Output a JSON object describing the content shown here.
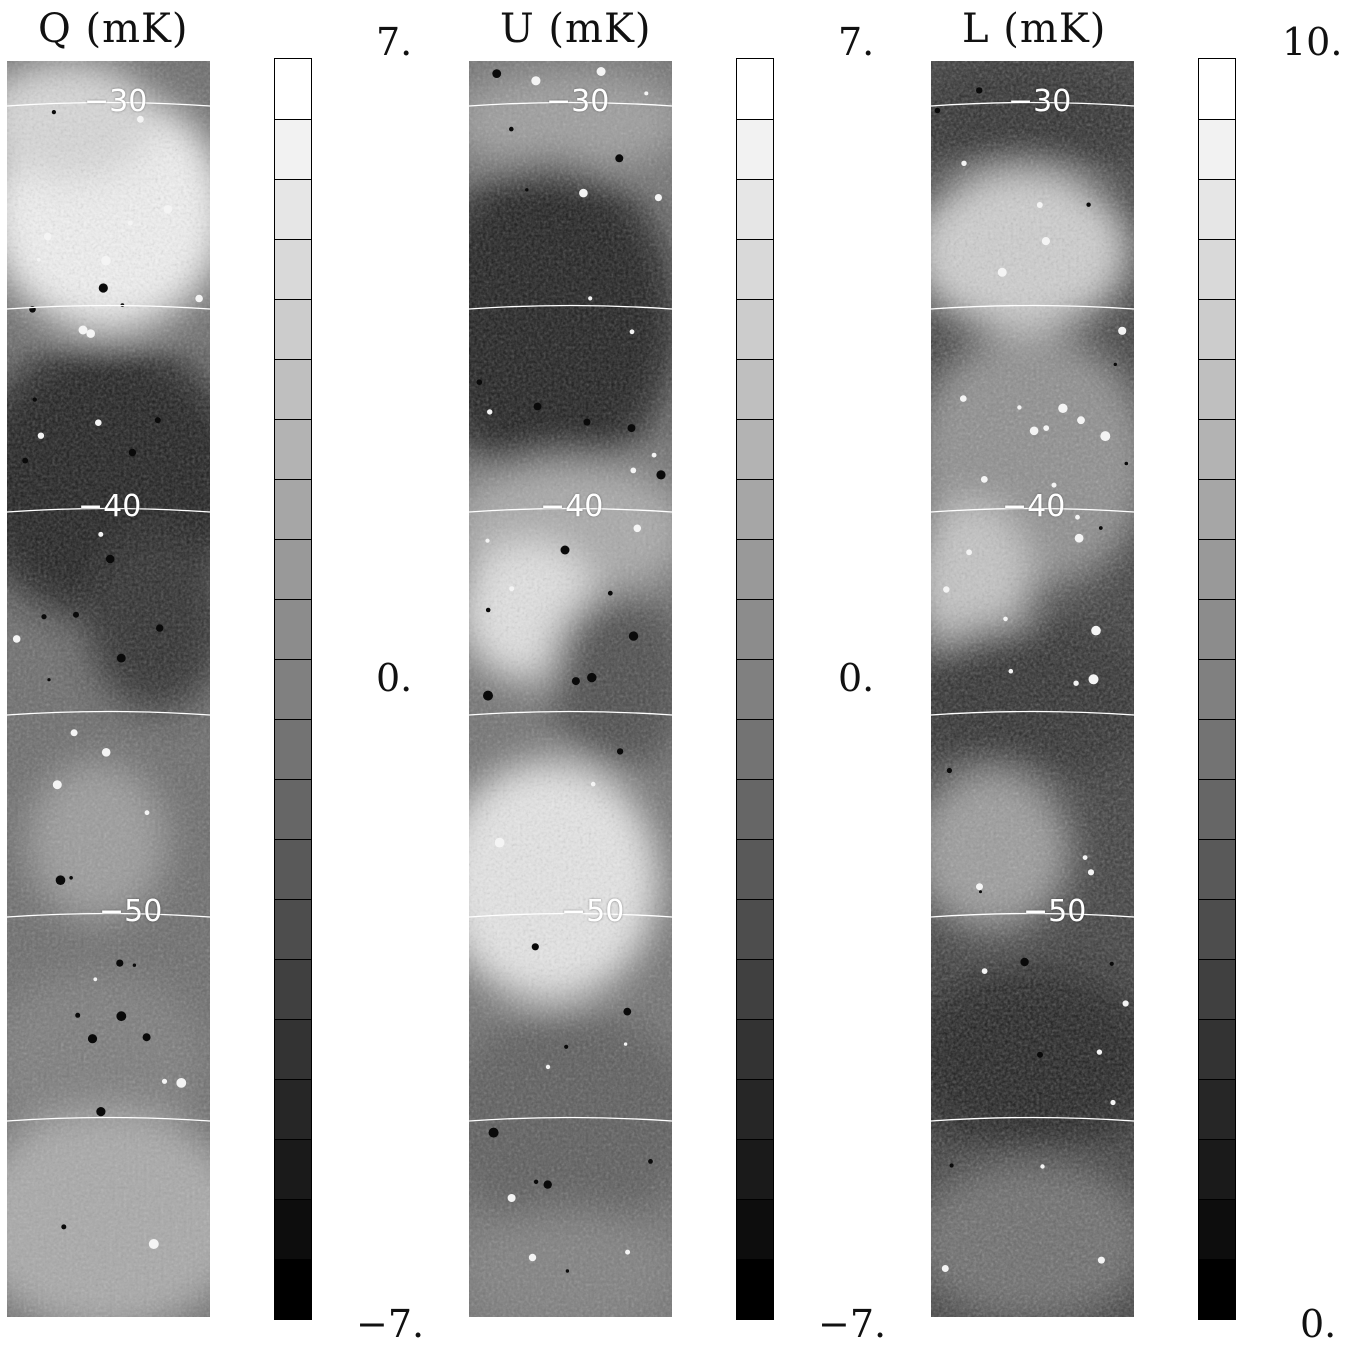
{
  "panels": [
    {
      "id": "q",
      "title": "Q (mK)",
      "colorbar": {
        "max": "7.",
        "mid": "0.",
        "min": "−7."
      },
      "latitudes": [
        "−30",
        "−40",
        "−50"
      ],
      "tone": "q"
    },
    {
      "id": "u",
      "title": "U (mK)",
      "colorbar": {
        "max": "7.",
        "mid": "0.",
        "min": "−7."
      },
      "latitudes": [
        "−30",
        "−40",
        "−50"
      ],
      "tone": "u"
    },
    {
      "id": "l",
      "title": "L (mK)",
      "colorbar": {
        "max": "10.",
        "mid": "",
        "min": "0."
      },
      "latitudes": [
        "−30",
        "−40",
        "−50"
      ],
      "tone": "l"
    }
  ],
  "colorbar_levels": 21,
  "colors": {
    "background": "#ffffff",
    "grid_line": "#ffffff",
    "bar_border": "#000000"
  }
}
